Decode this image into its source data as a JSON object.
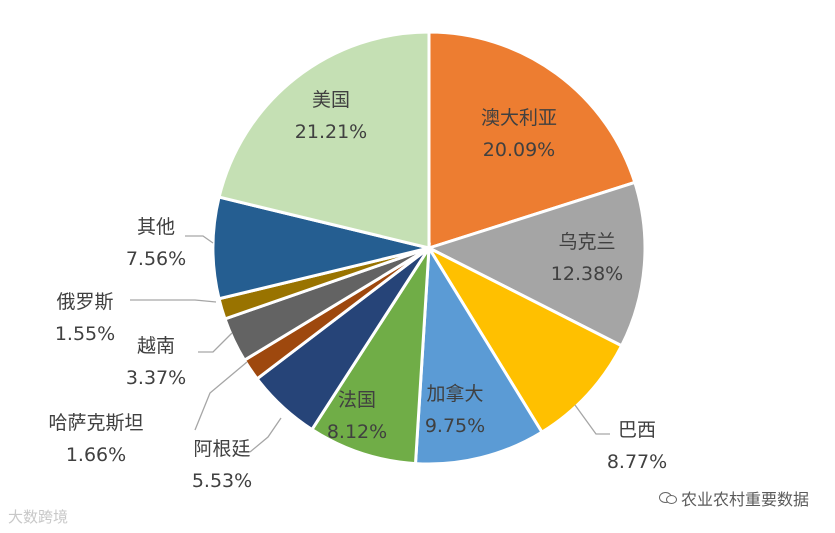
{
  "chart_data": {
    "type": "pie",
    "categories": [
      "澳大利亚",
      "乌克兰",
      "巴西",
      "加拿大",
      "法国",
      "阿根廷",
      "哈萨克斯坦",
      "越南",
      "俄罗斯",
      "其他",
      "美国"
    ],
    "values": [
      20.09,
      12.38,
      8.77,
      9.75,
      8.12,
      5.53,
      1.66,
      3.37,
      1.55,
      7.56,
      21.21
    ],
    "value_labels": [
      "20.09%",
      "12.38%",
      "8.77%",
      "9.75%",
      "8.12%",
      "5.53%",
      "1.66%",
      "3.37%",
      "1.55%",
      "7.56%",
      "21.21%"
    ],
    "colors": [
      "#ED7D31",
      "#A5A5A5",
      "#FFC000",
      "#5B9BD5",
      "#70AD47",
      "#264478",
      "#9E480E",
      "#636363",
      "#997300",
      "#255E91",
      "#C5E0B4"
    ],
    "title": "",
    "legend": "none",
    "data_labels": "category-and-percent"
  },
  "watermark": {
    "left": "大数跨境",
    "right": "农业农村重要数据",
    "right_icon": "wechat-icon"
  }
}
